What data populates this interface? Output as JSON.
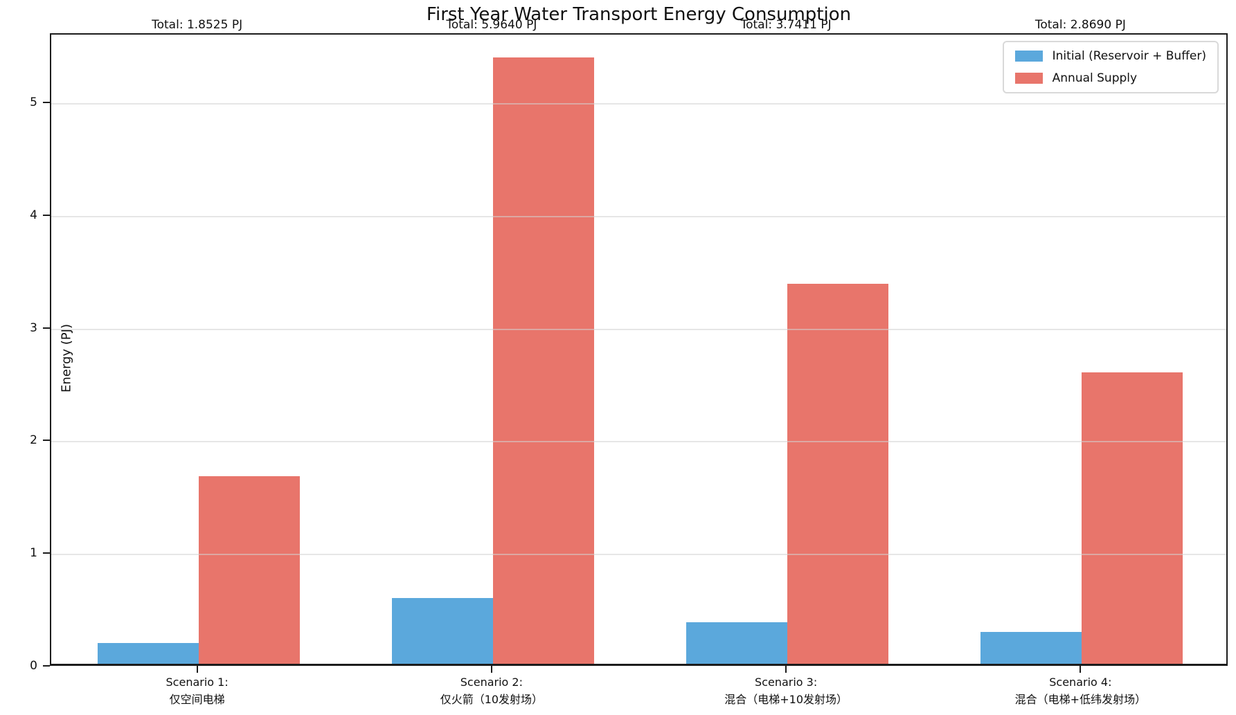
{
  "title": "First Year Water Transport Energy Consumption",
  "ylabel": "Energy (PJ)",
  "legend": {
    "entries": [
      {
        "label": "Initial (Reservoir + Buffer)",
        "color": "#5BA8DC"
      },
      {
        "label": "Annual Supply",
        "color": "#E8756B"
      }
    ]
  },
  "chart_data": {
    "type": "bar",
    "title": "First Year Water Transport Energy Consumption",
    "xlabel": "",
    "ylabel": "Energy (PJ)",
    "ylim": [
      0,
      5.615
    ],
    "yticks": [
      0,
      1,
      2,
      3,
      4,
      5
    ],
    "grid": "horizontal",
    "legend_position": "upper right",
    "categories": [
      {
        "line1": "Scenario 1:",
        "line2": "仅空间电梯"
      },
      {
        "line1": "Scenario 2:",
        "line2": "仅火箭（10发射场）"
      },
      {
        "line1": "Scenario 3:",
        "line2": "混合（电梯+10发射场）"
      },
      {
        "line1": "Scenario 4:",
        "line2": "混合（电梯+低纬发射场）"
      }
    ],
    "series": [
      {
        "name": "Initial (Reservoir + Buffer)",
        "color": "#5BA8DC",
        "values": [
          0.185,
          0.583,
          0.368,
          0.28
        ]
      },
      {
        "name": "Annual Supply",
        "color": "#E8756B",
        "values": [
          1.6675,
          5.381,
          3.3731,
          2.589
        ]
      }
    ],
    "totals": [
      "Total: 1.8525 PJ",
      "Total: 5.9640 PJ",
      "Total: 3.7411 PJ",
      "Total: 2.8690 PJ"
    ],
    "total_values_pj": [
      1.8525,
      5.964,
      3.7411,
      2.869
    ]
  }
}
